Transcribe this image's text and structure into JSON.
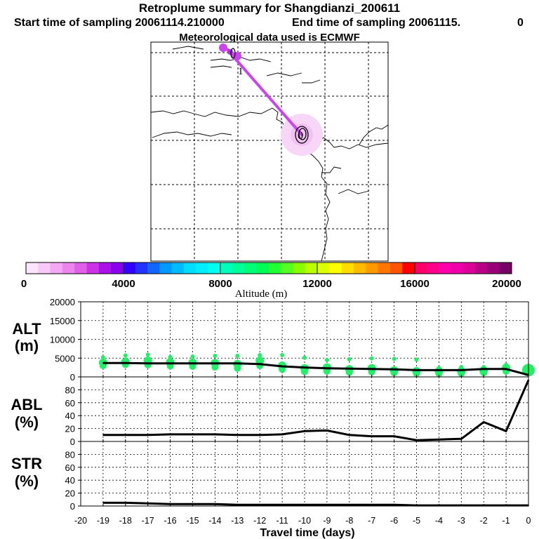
{
  "title": "Retroplume summary for Shangdianzi_200611",
  "start_label": "Start time of sampling 20061114.210000",
  "end_label": "End time of sampling 20061115.",
  "end_suffix": "0",
  "met_label": "Meteorological data used is ECMWF",
  "colors": {
    "track": "#cc44ee",
    "plume_halo": "#f8d6f8",
    "scatter": "#22ee66",
    "line": "#000000"
  },
  "chart_data": [
    {
      "type": "map",
      "name": "retroplume-map",
      "plume_day_labels": [
        "1",
        "0"
      ],
      "track_points": [
        {
          "day": -1.5,
          "label": ""
        },
        {
          "day": -1.0,
          "label": "1"
        },
        {
          "day": 0.0,
          "label": "0"
        }
      ]
    },
    {
      "type": "colorbar",
      "label": "Altitude (m)",
      "min": 0,
      "max": 20000,
      "tick_labels": [
        "0",
        "4000",
        "8000",
        "12000",
        "16000",
        "20000"
      ],
      "tick_values": [
        0,
        4000,
        8000,
        12000,
        16000,
        20000
      ],
      "colors": [
        "#fce4fc",
        "#f8c8f8",
        "#f2a8f2",
        "#ec86ec",
        "#e060e8",
        "#cc33e6",
        "#aa11e8",
        "#8800ee",
        "#3300ff",
        "#2233ff",
        "#1166ff",
        "#0099ff",
        "#00bbff",
        "#00ddff",
        "#00eeff",
        "#00ffee",
        "#00ffbb",
        "#00ff99",
        "#00ff77",
        "#00ff55",
        "#22ff33",
        "#55ff22",
        "#88ff00",
        "#bbff00",
        "#ddff00",
        "#ffff00",
        "#ffdd00",
        "#ffbb00",
        "#ff9900",
        "#ff7700",
        "#ff5500",
        "#ff0000",
        "#ff0066",
        "#ff0088",
        "#ff00aa",
        "#ee00aa",
        "#dd0099",
        "#bb0088",
        "#990077",
        "#770066"
      ]
    },
    {
      "type": "line",
      "name": "alt-panel",
      "ylabel": "ALT (m)",
      "ylabel_lines": [
        "ALT",
        "(m)"
      ],
      "ylim": [
        0,
        20000
      ],
      "yticks": [
        0,
        5000,
        10000,
        15000,
        20000
      ],
      "ytick_labels": [
        "0",
        "5000",
        "10000",
        "15000",
        "20000"
      ],
      "x": [
        -19,
        -18,
        -17,
        -16,
        -15,
        -14,
        -13,
        -12,
        -11,
        -10,
        -9,
        -8,
        -7,
        -6,
        -5,
        -4,
        -3,
        -2,
        -1,
        0
      ],
      "values": [
        3700,
        3700,
        3600,
        3600,
        3600,
        3600,
        3600,
        3400,
        2800,
        2500,
        2300,
        2200,
        2100,
        2000,
        1800,
        1800,
        1800,
        2100,
        2100,
        500
      ],
      "scatter": [
        [
          -19,
          3800
        ],
        [
          -19,
          5200
        ],
        [
          -19,
          3000
        ],
        [
          -18,
          4000
        ],
        [
          -18,
          5700
        ],
        [
          -18,
          3300
        ],
        [
          -17,
          4300
        ],
        [
          -17,
          5900
        ],
        [
          -17,
          3200
        ],
        [
          -16,
          3900
        ],
        [
          -16,
          5300
        ],
        [
          -16,
          2900
        ],
        [
          -15,
          3800
        ],
        [
          -15,
          5400
        ],
        [
          -15,
          2800
        ],
        [
          -14,
          3700
        ],
        [
          -14,
          5600
        ],
        [
          -14,
          2600
        ],
        [
          -13,
          3400
        ],
        [
          -13,
          5600
        ],
        [
          -13,
          2300
        ],
        [
          -12,
          4300
        ],
        [
          -12,
          5800
        ],
        [
          -12,
          3000
        ],
        [
          -11,
          3000
        ],
        [
          -11,
          5800
        ],
        [
          -11,
          2000
        ],
        [
          -10,
          2300
        ],
        [
          -10,
          5100
        ],
        [
          -10,
          1400
        ],
        [
          -9,
          2500
        ],
        [
          -9,
          4500
        ],
        [
          -9,
          1500
        ],
        [
          -8,
          2000
        ],
        [
          -8,
          4700
        ],
        [
          -8,
          1200
        ],
        [
          -7,
          2300
        ],
        [
          -7,
          4900
        ],
        [
          -7,
          1300
        ],
        [
          -6,
          1700
        ],
        [
          -6,
          4800
        ],
        [
          -6,
          1100
        ],
        [
          -5,
          1500
        ],
        [
          -5,
          4600
        ],
        [
          -5,
          900
        ],
        [
          -4,
          1500
        ],
        [
          -4,
          2400
        ],
        [
          -4,
          900
        ],
        [
          -3,
          1500
        ],
        [
          -3,
          2600
        ],
        [
          -3,
          900
        ],
        [
          -2,
          1700
        ],
        [
          -2,
          2600
        ],
        [
          -2,
          1100
        ],
        [
          -1,
          2400
        ],
        [
          -1,
          3200
        ],
        [
          -1,
          1500
        ],
        [
          0,
          1800
        ],
        [
          0,
          2600
        ],
        [
          0,
          1200
        ]
      ]
    },
    {
      "type": "line",
      "name": "abl-panel",
      "ylabel": "ABL (%)",
      "ylabel_lines": [
        "ABL",
        "(%)"
      ],
      "ylim": [
        0,
        100
      ],
      "yticks": [
        0,
        20,
        40,
        60,
        80
      ],
      "ytick_labels": [
        "0",
        "20",
        "40",
        "60",
        "80"
      ],
      "x": [
        -19,
        -18,
        -17,
        -16,
        -15,
        -14,
        -13,
        -12,
        -11,
        -10,
        -9,
        -8,
        -7,
        -6,
        -5,
        -4,
        -3,
        -2,
        -1,
        0
      ],
      "values": [
        10,
        10,
        10,
        11,
        11,
        11,
        10,
        10,
        11,
        16,
        17,
        10,
        8,
        8,
        2,
        3,
        4,
        30,
        16,
        95
      ]
    },
    {
      "type": "line",
      "name": "str-panel",
      "ylabel": "STR (%)",
      "ylabel_lines": [
        "STR",
        "(%)"
      ],
      "ylim": [
        0,
        100
      ],
      "yticks": [
        0,
        20,
        40,
        60,
        80
      ],
      "ytick_labels": [
        "0",
        "20",
        "40",
        "60",
        "80"
      ],
      "x": [
        -19,
        -18,
        -17,
        -16,
        -15,
        -14,
        -13,
        -12,
        -11,
        -10,
        -9,
        -8,
        -7,
        -6,
        -5,
        -4,
        -3,
        -2,
        -1,
        0
      ],
      "values": [
        5,
        5,
        4,
        3,
        3,
        3,
        2,
        2,
        2,
        2,
        2,
        2,
        2,
        2,
        1,
        1,
        1,
        1,
        1,
        1
      ],
      "xlabel": "Travel time (days)",
      "xlim": [
        -20,
        0
      ],
      "xticks": [
        -20,
        -19,
        -18,
        -17,
        -16,
        -15,
        -14,
        -13,
        -12,
        -11,
        -10,
        -9,
        -8,
        -7,
        -6,
        -5,
        -4,
        -3,
        -2,
        -1,
        0
      ],
      "xtick_labels": [
        "-20",
        "-19",
        "-18",
        "-17",
        "-16",
        "-15",
        "-14",
        "-13",
        "-12",
        "-11",
        "-10",
        "-9",
        "-8",
        "-7",
        "-6",
        "-5",
        "-4",
        "-3",
        "-2",
        "-1",
        "0"
      ]
    }
  ]
}
